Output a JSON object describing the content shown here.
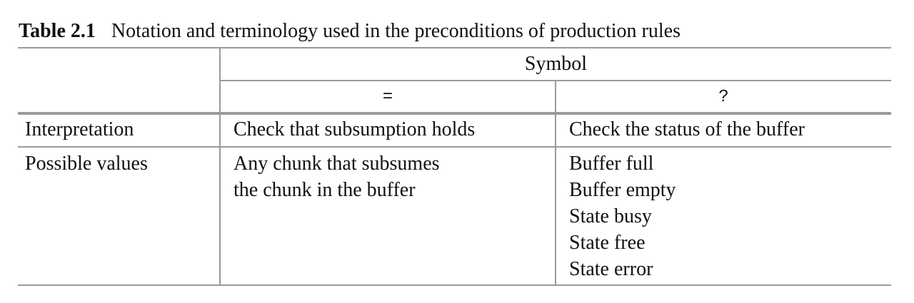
{
  "caption": {
    "number": "Table 2.1",
    "text": "Notation and terminology used in the preconditions of production rules"
  },
  "table": {
    "group_header": "Symbol",
    "symbols": [
      "=",
      "?"
    ],
    "rows": [
      {
        "label": "Interpretation",
        "col1": [
          "Check that subsumption holds"
        ],
        "col2": [
          "Check the status of the buffer"
        ]
      },
      {
        "label": "Possible values",
        "col1": [
          "Any chunk that subsumes",
          "the chunk in the buffer"
        ],
        "col2": [
          "Buffer full",
          "Buffer empty",
          "State busy",
          "State free",
          "State error"
        ]
      }
    ]
  }
}
